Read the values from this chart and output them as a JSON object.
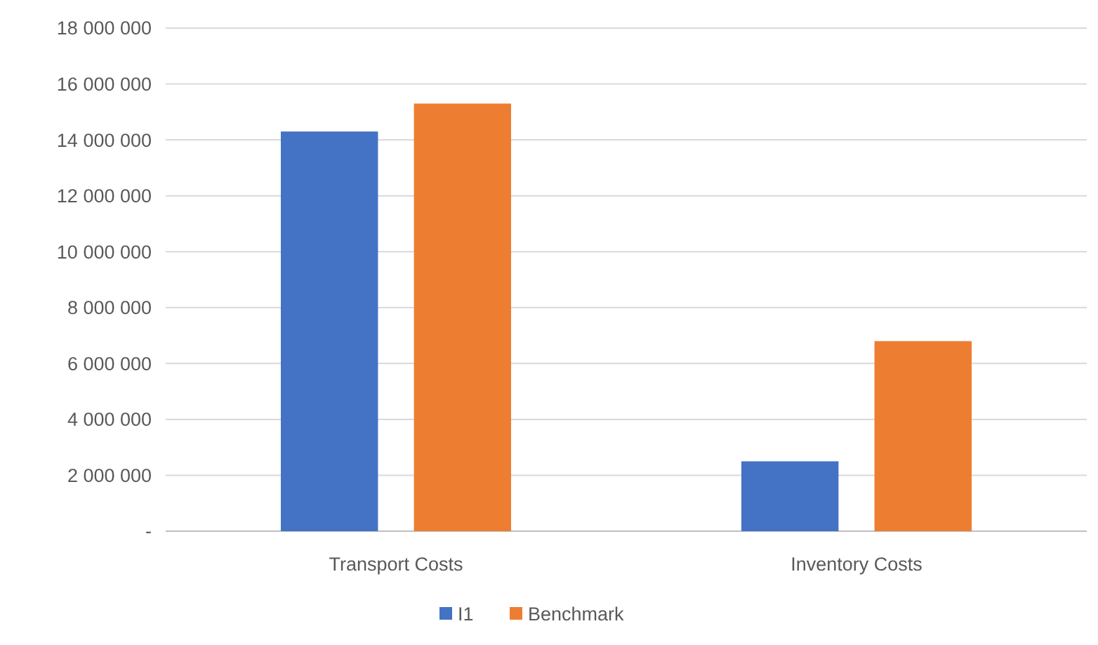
{
  "chart_data": {
    "type": "bar",
    "categories": [
      "Transport Costs",
      "Inventory Costs"
    ],
    "series": [
      {
        "name": "I1",
        "color": "#4472c4",
        "values": [
          14300000,
          2500000
        ]
      },
      {
        "name": "Benchmark",
        "color": "#ed7d31",
        "values": [
          15300000,
          6800000
        ]
      }
    ],
    "ylim": [
      0,
      18000000
    ],
    "yticks": [
      {
        "value": 0,
        "label": "-"
      },
      {
        "value": 2000000,
        "label": "2 000 000"
      },
      {
        "value": 4000000,
        "label": "4 000 000"
      },
      {
        "value": 6000000,
        "label": "6 000 000"
      },
      {
        "value": 8000000,
        "label": "8 000 000"
      },
      {
        "value": 10000000,
        "label": "10 000 000"
      },
      {
        "value": 12000000,
        "label": "12 000 000"
      },
      {
        "value": 14000000,
        "label": "14 000 000"
      },
      {
        "value": 16000000,
        "label": "16 000 000"
      },
      {
        "value": 18000000,
        "label": "18 000 000"
      }
    ],
    "grid": "y",
    "legend": "bottom"
  }
}
